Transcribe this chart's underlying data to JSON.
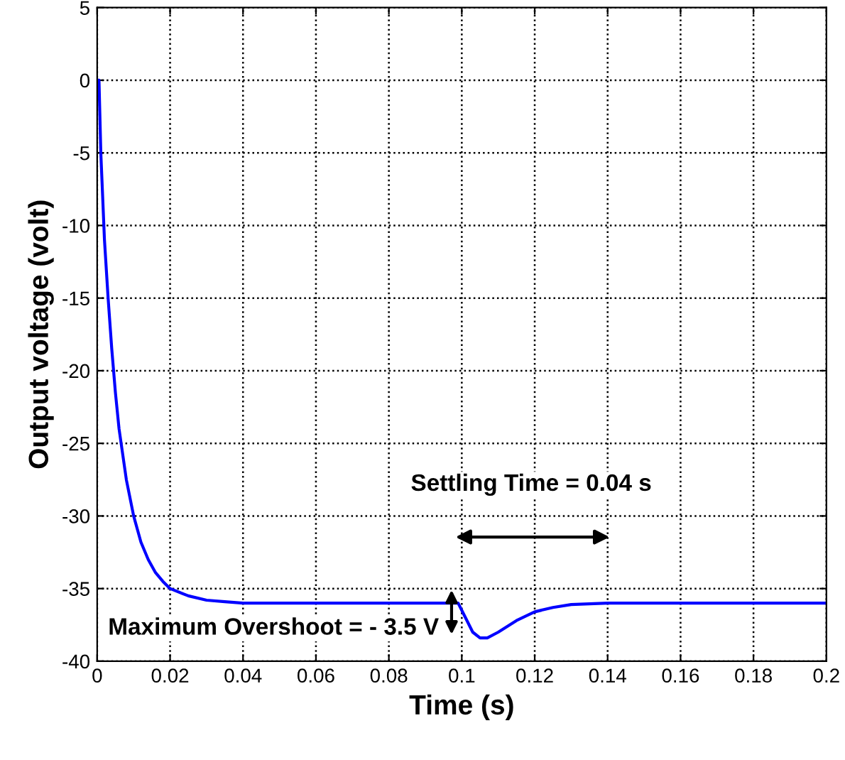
{
  "chart_data": {
    "type": "line",
    "xlabel": "Time (s)",
    "ylabel": "Output voltage (volt)",
    "x": [
      0,
      0.0005,
      0.001,
      0.002,
      0.003,
      0.004,
      0.005,
      0.006,
      0.008,
      0.01,
      0.012,
      0.014,
      0.016,
      0.018,
      0.02,
      0.025,
      0.03,
      0.035,
      0.04,
      0.099,
      0.101,
      0.103,
      0.105,
      0.107,
      0.11,
      0.115,
      0.12,
      0.125,
      0.13,
      0.14,
      0.2
    ],
    "series": [
      {
        "color": "#0000ff",
        "values": [
          0,
          0,
          -5,
          -11,
          -15,
          -18.5,
          -21.5,
          -24,
          -27.5,
          -30,
          -31.8,
          -33,
          -33.9,
          -34.5,
          -35,
          -35.5,
          -35.8,
          -35.9,
          -36,
          -36,
          -37,
          -38,
          -38.4,
          -38.4,
          -38,
          -37.2,
          -36.6,
          -36.3,
          -36.1,
          -36,
          -36
        ]
      }
    ],
    "xlim": [
      0,
      0.2
    ],
    "xticks": [
      0,
      0.02,
      0.04,
      0.06,
      0.08,
      0.1,
      0.12,
      0.14,
      0.16,
      0.18,
      0.2
    ],
    "ylim": [
      -40,
      5
    ],
    "yticks": [
      -40,
      -35,
      -30,
      -25,
      -20,
      -15,
      -10,
      -5,
      0,
      5
    ],
    "grid": true,
    "marker": "none",
    "annotations": [
      "Settling Time = 0.04 s",
      "Maximum Overshoot = - 3.5 V"
    ]
  }
}
